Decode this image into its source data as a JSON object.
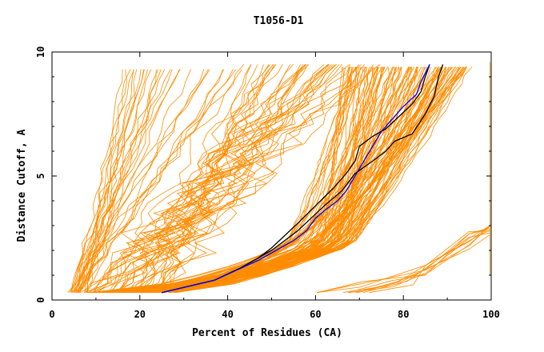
{
  "chart_data": {
    "type": "line",
    "title": "T1056-D1",
    "xlabel": "Percent of Residues (CA)",
    "ylabel": "Distance Cutoff, A",
    "xlim": [
      0,
      100
    ],
    "ylim": [
      0,
      10
    ],
    "x_ticks": [
      0,
      20,
      40,
      60,
      80,
      100
    ],
    "y_ticks": [
      0,
      5,
      10
    ],
    "colors": {
      "models": "#ff8c00",
      "highlight_black": "#000000",
      "highlight_blue": "#0000ff"
    },
    "series": [
      {
        "color": "black",
        "points": [
          [
            25,
            0.3
          ],
          [
            37,
            0.8
          ],
          [
            43,
            1.3
          ],
          [
            47,
            1.7
          ],
          [
            50,
            2.0
          ],
          [
            53,
            2.4
          ],
          [
            56,
            2.8
          ],
          [
            59,
            3.3
          ],
          [
            62,
            3.8
          ],
          [
            66,
            4.4
          ],
          [
            69,
            5.1
          ],
          [
            73,
            5.6
          ],
          [
            76,
            6.0
          ],
          [
            78,
            6.4
          ],
          [
            82,
            6.7
          ],
          [
            85,
            7.5
          ],
          [
            87,
            8.2
          ],
          [
            88,
            9.0
          ],
          [
            89,
            9.5
          ]
        ]
      },
      {
        "color": "black",
        "points": [
          [
            25,
            0.3
          ],
          [
            37,
            0.8
          ],
          [
            43,
            1.3
          ],
          [
            47,
            1.7
          ],
          [
            50,
            2.1
          ],
          [
            53,
            2.6
          ],
          [
            56,
            3.1
          ],
          [
            60,
            3.8
          ],
          [
            64,
            4.5
          ],
          [
            67,
            5.1
          ],
          [
            69,
            5.6
          ],
          [
            70,
            6.2
          ],
          [
            73,
            6.6
          ],
          [
            76,
            6.9
          ],
          [
            79,
            7.4
          ],
          [
            82,
            7.9
          ],
          [
            84,
            8.4
          ],
          [
            85,
            9.0
          ],
          [
            86,
            9.5
          ]
        ]
      },
      {
        "color": "blue",
        "points": [
          [
            25,
            0.3
          ],
          [
            37,
            0.8
          ],
          [
            42,
            1.2
          ],
          [
            47,
            1.6
          ],
          [
            51,
            2.0
          ],
          [
            55,
            2.4
          ],
          [
            58,
            2.8
          ],
          [
            60,
            3.3
          ],
          [
            62,
            3.6
          ],
          [
            65,
            4.0
          ],
          [
            67,
            4.4
          ],
          [
            69,
            5.0
          ],
          [
            71,
            5.6
          ],
          [
            73,
            6.2
          ],
          [
            75,
            6.8
          ],
          [
            77,
            7.2
          ],
          [
            80,
            7.8
          ],
          [
            83,
            8.3
          ],
          [
            84,
            8.8
          ],
          [
            86,
            9.5
          ]
        ]
      }
    ]
  }
}
